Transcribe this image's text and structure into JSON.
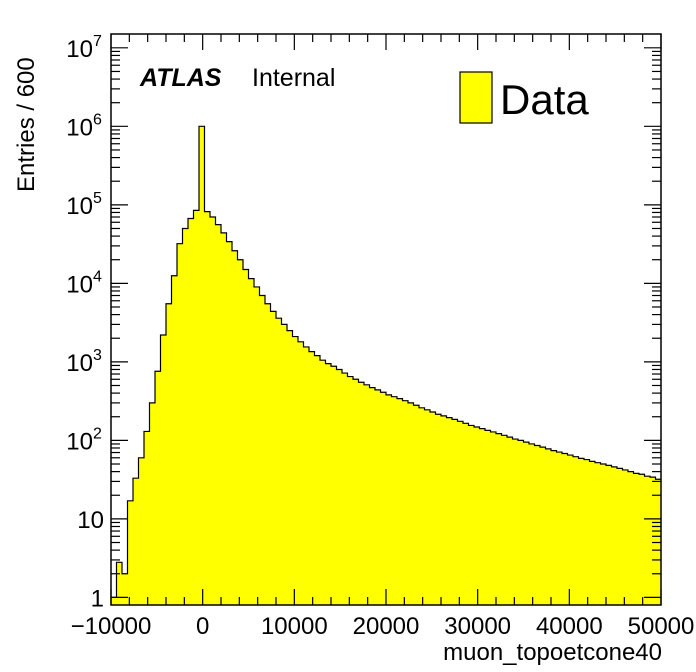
{
  "chart_data": {
    "type": "bar",
    "subtype": "histogram",
    "xlabel": "muon_topoetcone40",
    "ylabel": "Entries / 600",
    "xlim": [
      -10000,
      50000
    ],
    "ylim": [
      0.8,
      15000000
    ],
    "yscale": "log",
    "bin_width": 600,
    "x_ticks": [
      {
        "value": -10000,
        "label": "−10000"
      },
      {
        "value": 0,
        "label": "0"
      },
      {
        "value": 10000,
        "label": "10000"
      },
      {
        "value": 20000,
        "label": "20000"
      },
      {
        "value": 30000,
        "label": "30000"
      },
      {
        "value": 40000,
        "label": "40000"
      },
      {
        "value": 50000,
        "label": "50000"
      }
    ],
    "y_ticks": [
      {
        "value": 1,
        "base": "1",
        "exp": ""
      },
      {
        "value": 10,
        "base": "10",
        "exp": ""
      },
      {
        "value": 100,
        "base": "10",
        "exp": "2"
      },
      {
        "value": 1000,
        "base": "10",
        "exp": "3"
      },
      {
        "value": 10000,
        "base": "10",
        "exp": "4"
      },
      {
        "value": 100000,
        "base": "10",
        "exp": "5"
      },
      {
        "value": 1000000,
        "base": "10",
        "exp": "6"
      },
      {
        "value": 10000000,
        "base": "10",
        "exp": "7"
      }
    ],
    "atlas_label": "ATLAS",
    "atlas_sublabel": "Internal",
    "legend": {
      "position": "top-right",
      "entries": [
        {
          "label": "Data",
          "color": "#ffff00"
        }
      ]
    },
    "series": [
      {
        "name": "Data",
        "color": "#ffff00",
        "edge_color": "#000000",
        "values": [
          1,
          2.8,
          2,
          17,
          33,
          60,
          130,
          300,
          760,
          2200,
          5500,
          12500,
          32000,
          50000,
          67000,
          85000,
          1000000,
          82000,
          70000,
          56000,
          44000,
          34000,
          26000,
          20000,
          15000,
          11500,
          9000,
          7000,
          5500,
          4400,
          3600,
          3000,
          2500,
          2100,
          1800,
          1550,
          1350,
          1200,
          1050,
          950,
          880,
          800,
          720,
          650,
          600,
          550,
          510,
          470,
          440,
          410,
          380,
          360,
          340,
          320,
          300,
          280,
          260,
          245,
          230,
          215,
          205,
          195,
          185,
          175,
          165,
          155,
          148,
          141,
          134,
          128,
          122,
          116,
          110,
          104,
          100,
          95,
          90,
          86,
          82,
          78,
          74,
          71,
          68,
          65,
          62,
          59,
          57,
          54,
          52,
          50,
          48,
          46,
          44,
          42,
          40,
          38,
          37,
          35,
          34,
          32
        ]
      }
    ]
  }
}
